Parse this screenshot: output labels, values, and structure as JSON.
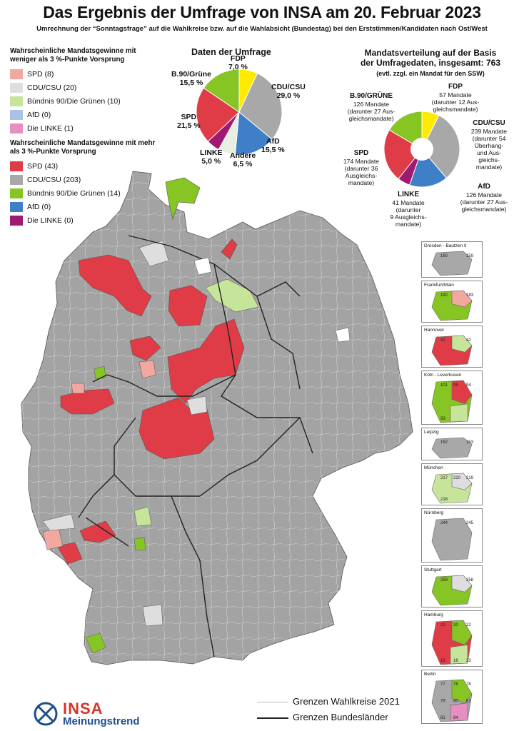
{
  "title": "Das Ergebnis der Umfrage von INSA am 20. Februar 2023",
  "subtitle": "Umrechnung der “Sonntagsfrage” auf die Wahlkreise bzw. auf die Wahlabsicht (Bundestag) bei den Erststimmen/Kandidaten nach Ost/West",
  "colors": {
    "spd_light": "#f2a7a0",
    "cdu_light": "#dedede",
    "gruene_light": "#c7e59a",
    "afd_light": "#a9c3e6",
    "linke_light": "#e58fc2",
    "spd": "#e03c47",
    "cdu": "#a8a8a8",
    "gruene": "#86c523",
    "afd": "#3f7fc8",
    "linke": "#a0186f",
    "fdp": "#ffea00",
    "andere": "#e8eee0",
    "map_gray": "#a3a3a3"
  },
  "legend": {
    "weak_title": "Wahrscheinliche Mandatsgewinne mit weniger als 3 %-Punkte Vorsprung",
    "weak_items": [
      {
        "label": "SPD (8)",
        "color": "#f2a7a0"
      },
      {
        "label": "CDU/CSU (20)",
        "color": "#dedede"
      },
      {
        "label": "Bündnis 90/Die Grünen (10)",
        "color": "#c7e59a"
      },
      {
        "label": "AfD (0)",
        "color": "#a9c3e6"
      },
      {
        "label": "Die LINKE (1)",
        "color": "#e58fc2"
      }
    ],
    "strong_title": "Wahrscheinliche Mandatsgewinne mit mehr als 3 %-Punkte Vorsprung",
    "strong_items": [
      {
        "label": "SPD (43)",
        "color": "#e03c47"
      },
      {
        "label": "CDU/CSU (203)",
        "color": "#a8a8a8"
      },
      {
        "label": "Bündnis 90/Die Grünen (14)",
        "color": "#86c523"
      },
      {
        "label": "AfD (0)",
        "color": "#3f7fc8"
      },
      {
        "label": "Die LINKE (0)",
        "color": "#a0186f"
      }
    ]
  },
  "poll": {
    "title": "Daten der Umfrage",
    "chart_data": {
      "type": "pie",
      "slices": [
        {
          "name": "FDP",
          "value": 7.0,
          "label": "7,0 %",
          "color": "#ffea00"
        },
        {
          "name": "CDU/CSU",
          "value": 29.0,
          "label": "29,0 %",
          "color": "#a8a8a8"
        },
        {
          "name": "AfD",
          "value": 15.5,
          "label": "15,5 %",
          "color": "#3f7fc8"
        },
        {
          "name": "Andere",
          "value": 6.5,
          "label": "6,5 %",
          "color": "#e8eee0"
        },
        {
          "name": "LINKE",
          "value": 5.0,
          "label": "5,0 %",
          "color": "#a0186f"
        },
        {
          "name": "SPD",
          "value": 21.5,
          "label": "21,5 %",
          "color": "#e03c47"
        },
        {
          "name": "B.90/Grüne",
          "value": 15.5,
          "label": "15,5 %",
          "color": "#86c523"
        }
      ]
    }
  },
  "seats": {
    "title_line1": "Mandatsverteilung auf der Basis",
    "title_line2": "der Umfragedaten, insgesamt: 763",
    "note": "(evtl. zzgl. ein Mandat für den SSW)",
    "chart_data": {
      "type": "pie",
      "donut": true,
      "total": 763,
      "slices": [
        {
          "name": "FDP",
          "value": 57,
          "color": "#ffea00",
          "lines": [
            "57 Mandate",
            "(darunter 12 Aus-",
            "gleichsmandate)"
          ]
        },
        {
          "name": "CDU/CSU",
          "value": 239,
          "color": "#a8a8a8",
          "lines": [
            "239 Mandate",
            "(darunter 54",
            "Überhang-",
            "und Aus-",
            "gleichs-",
            "mandate)"
          ]
        },
        {
          "name": "AfD",
          "value": 126,
          "color": "#3f7fc8",
          "lines": [
            "126 Mandate",
            "(darunter 27 Aus-",
            "gleichsmandate)"
          ]
        },
        {
          "name": "LINKE",
          "value": 41,
          "color": "#a0186f",
          "lines": [
            "41 Mandate",
            "(darunter",
            "9 Ausgleichs-",
            "mandate)"
          ]
        },
        {
          "name": "SPD",
          "value": 174,
          "color": "#e03c47",
          "lines": [
            "174 Mandate",
            "(darunter 36",
            "Ausgleichs-",
            "mandate)"
          ]
        },
        {
          "name": "B.90/GRÜNE",
          "value": 126,
          "color": "#86c523",
          "lines": [
            "126 Mandate",
            "(darunter 27 Aus-",
            "gleichsmandate)"
          ]
        }
      ]
    }
  },
  "insets": [
    {
      "name": "Dresden - Bautzen II",
      "labels": [
        "160",
        "159"
      ]
    },
    {
      "name": "Frankfurt/Main",
      "labels": [
        "182",
        "183"
      ]
    },
    {
      "name": "Hannover",
      "labels": [
        "41",
        "42"
      ]
    },
    {
      "name": "Köln - Leverkusen",
      "labels": [
        "101",
        "95",
        "94",
        "93"
      ]
    },
    {
      "name": "Leipzig",
      "labels": [
        "152",
        "153"
      ]
    },
    {
      "name": "München",
      "labels": [
        "217",
        "220",
        "219",
        "218"
      ]
    },
    {
      "name": "Nürnberg",
      "labels": [
        "244",
        "245"
      ]
    },
    {
      "name": "Stuttgart",
      "labels": [
        "259",
        "258"
      ]
    },
    {
      "name": "Hamburg",
      "labels": [
        "21",
        "20",
        "22",
        "19",
        "18",
        "23"
      ]
    },
    {
      "name": "Berlin",
      "labels": [
        "77",
        "76",
        "78",
        "79",
        "80",
        "82",
        "81",
        "84"
      ]
    }
  ],
  "map_legend": {
    "constituency_border": "Grenzen Wahlkreise 2021",
    "state_border": "Grenzen Bundesländer"
  },
  "logo": {
    "brand": "INSA",
    "sub": "Meinungstrend"
  }
}
